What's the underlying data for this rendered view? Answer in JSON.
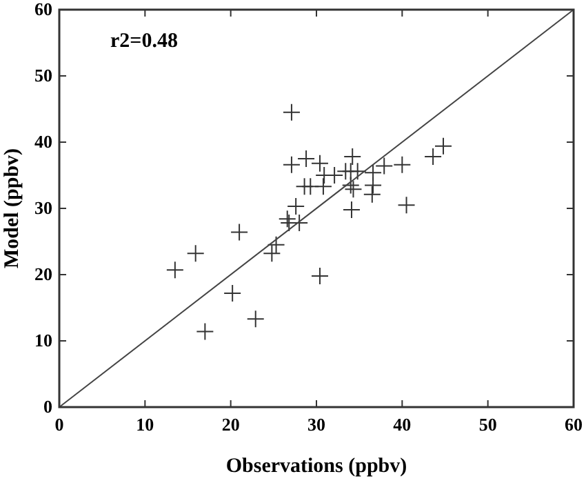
{
  "chart_data": {
    "type": "scatter",
    "xlabel": "Observations (ppbv)",
    "ylabel": "Model (ppbv)",
    "xlim": [
      0,
      60
    ],
    "ylim": [
      0,
      60
    ],
    "xticks": [
      0,
      10,
      20,
      30,
      40,
      50,
      60
    ],
    "yticks": [
      0,
      10,
      20,
      30,
      40,
      50,
      60
    ],
    "marker": "cross",
    "grid": false,
    "annotations": [
      "r2=0.48"
    ],
    "series": [
      {
        "color": "#333333",
        "x": [
          13.5,
          15.9,
          17.0,
          20.2,
          21.0,
          22.9,
          24.8,
          25.3,
          26.6,
          26.8,
          28.0,
          27.6,
          27.1,
          27.1,
          28.8,
          28.6,
          29.3,
          30.4,
          30.4,
          30.9,
          30.8,
          32.1,
          33.4,
          34.2,
          34.0,
          34.0,
          34.3,
          34.1,
          34.8,
          36.6,
          36.6,
          36.5,
          37.9,
          40.0,
          40.5,
          43.6,
          44.8
        ],
        "values": [
          20.7,
          23.2,
          11.4,
          17.2,
          26.4,
          13.3,
          23.2,
          24.5,
          28.4,
          27.8,
          27.8,
          30.3,
          44.5,
          36.6,
          37.5,
          33.3,
          33.3,
          19.8,
          36.8,
          35.0,
          33.3,
          35.0,
          35.6,
          37.8,
          35.6,
          33.5,
          32.9,
          29.8,
          35.6,
          35.4,
          33.5,
          32.1,
          36.4,
          36.6,
          30.5,
          37.8,
          39.4
        ]
      },
      {
        "type": "line",
        "color": "#444444",
        "x": [
          0,
          60
        ],
        "values": [
          0,
          60
        ],
        "marker": "none"
      }
    ]
  }
}
